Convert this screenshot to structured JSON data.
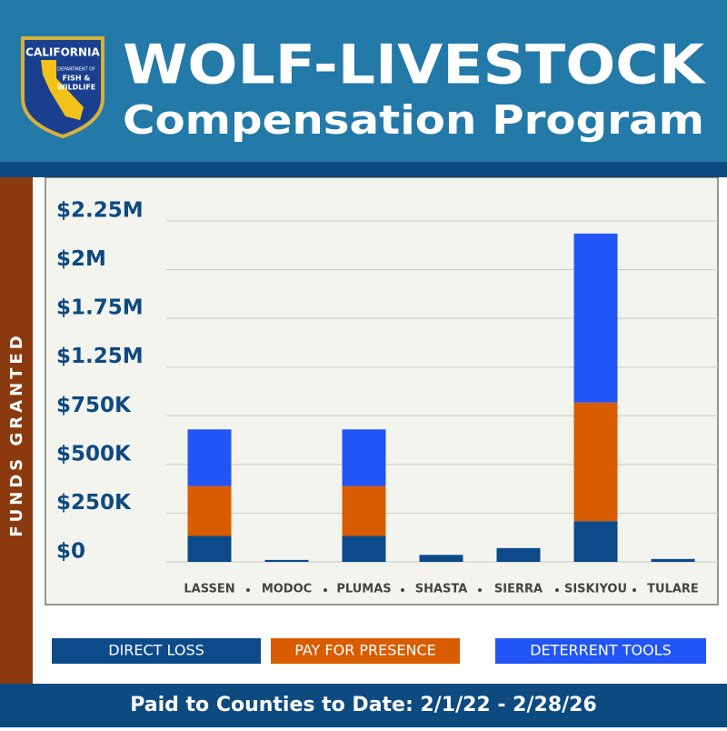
{
  "logo": {
    "top": "CALIFORNIA",
    "line1": "DEPARTMENT OF",
    "line2": "FISH &",
    "line3": "WILDLIFE"
  },
  "chart_data": {
    "type": "bar",
    "stacked": true,
    "title": "WOLF-LIVESTOCK",
    "subtitle": "Compensation Program",
    "y_label": "FUNDS GRANTED",
    "note": "Paid to Counties to Date: 2/1/22 - 2/28/26",
    "categories": [
      "LASSEN",
      "MODOC",
      "PLUMAS",
      "SHASTA",
      "SIERRA",
      "SISKIYOU",
      "TULARE"
    ],
    "series": [
      {
        "name": "DIRECT LOSS",
        "color": "#0c4a8a",
        "values": [
          133000,
          10000,
          133000,
          36000,
          71000,
          209000,
          15000
        ]
      },
      {
        "name": "PAY FOR PRESENCE",
        "color": "#d95c00",
        "values": [
          256000,
          0,
          256000,
          0,
          0,
          677000,
          0
        ]
      },
      {
        "name": "DETERRENT TOOLS",
        "color": "#2255f5",
        "values": [
          291000,
          0,
          291000,
          0,
          0,
          1299000,
          0
        ]
      }
    ],
    "ylim": [
      0,
      2250000
    ],
    "yticks": [
      {
        "value": 0,
        "label": "$0"
      },
      {
        "value": 250000,
        "label": "$250K"
      },
      {
        "value": 500000,
        "label": "$500K"
      },
      {
        "value": 750000,
        "label": "$750K"
      },
      {
        "value": 1250000,
        "label": "$1.25M"
      },
      {
        "value": 1750000,
        "label": "$1.75M"
      },
      {
        "value": 2000000,
        "label": "$2M"
      },
      {
        "value": 2250000,
        "label": "$2.25M"
      }
    ],
    "grid": true
  }
}
